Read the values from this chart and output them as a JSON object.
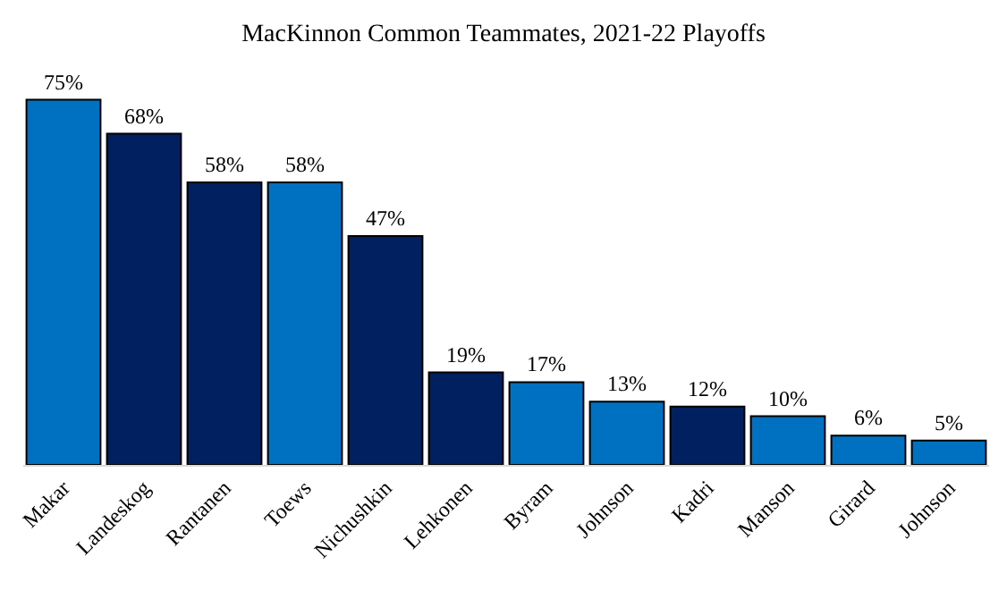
{
  "chart_data": {
    "type": "bar",
    "title": "MacKinnon Common Teammates, 2021-22 Playoffs",
    "categories": [
      "Makar",
      "Landeskog",
      "Rantanen",
      "Toews",
      "Nichushkin",
      "Lehkonen",
      "Byram",
      "Johnson",
      "Kadri",
      "Manson",
      "Girard",
      "Johnson"
    ],
    "values": [
      75,
      68,
      58,
      58,
      47,
      19,
      17,
      13,
      12,
      10,
      6,
      5
    ],
    "value_labels": [
      "75%",
      "68%",
      "58%",
      "58%",
      "47%",
      "19%",
      "17%",
      "13%",
      "12%",
      "10%",
      "6%",
      "5%"
    ],
    "colors": [
      "#0070c0",
      "#002060",
      "#002060",
      "#0070c0",
      "#002060",
      "#002060",
      "#0070c0",
      "#0070c0",
      "#002060",
      "#0070c0",
      "#0070c0",
      "#0070c0"
    ],
    "legend": false
  }
}
